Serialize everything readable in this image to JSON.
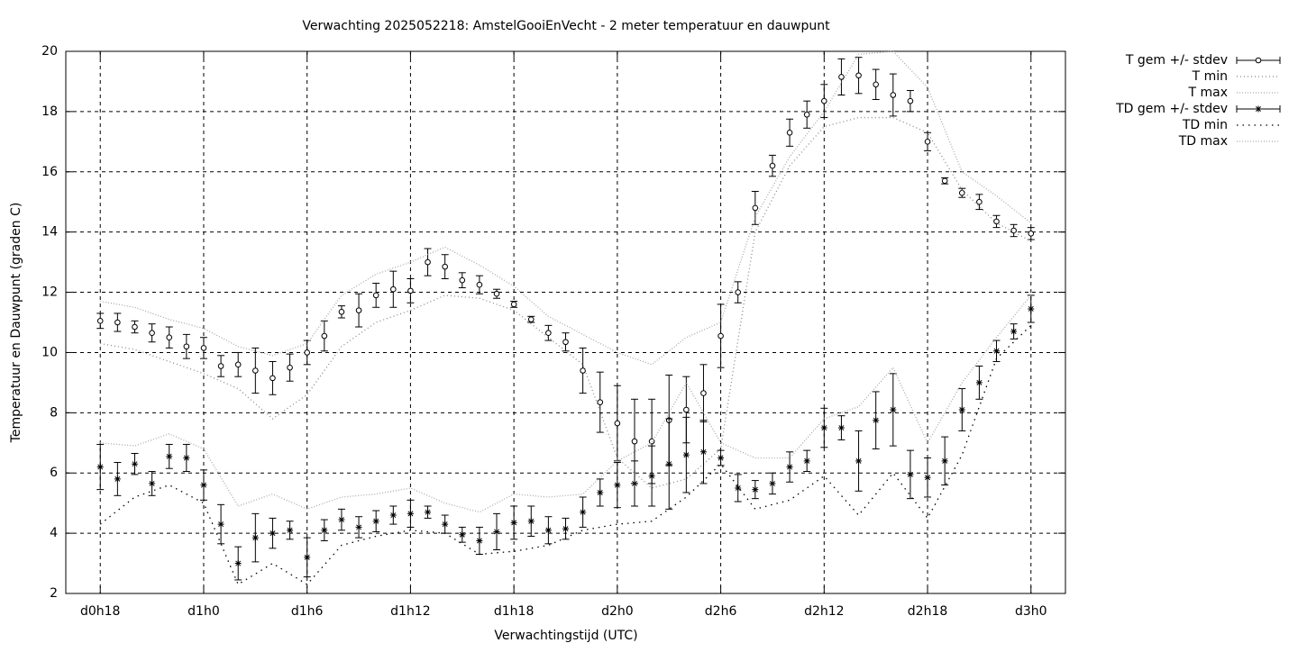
{
  "chart_data": {
    "type": "errorbar",
    "title": "Verwachting 2025052218: AmstelGooiEnVecht - 2 meter temperatuur en dauwpunt",
    "xlabel": "Verwachtingstijd (UTC)",
    "ylabel": "Temperatuur en Dauwpunt (graden C)",
    "xlim": [
      16,
      74
    ],
    "ylim": [
      2,
      20
    ],
    "xticks": [
      {
        "value": 18,
        "label": "d0h18"
      },
      {
        "value": 24,
        "label": "d1h0"
      },
      {
        "value": 30,
        "label": "d1h6"
      },
      {
        "value": 36,
        "label": "d1h12"
      },
      {
        "value": 42,
        "label": "d1h18"
      },
      {
        "value": 48,
        "label": "d2h0"
      },
      {
        "value": 54,
        "label": "d2h6"
      },
      {
        "value": 60,
        "label": "d2h12"
      },
      {
        "value": 66,
        "label": "d2h18"
      },
      {
        "value": 72,
        "label": "d3h0"
      }
    ],
    "yticks": [
      2,
      4,
      6,
      8,
      10,
      12,
      14,
      16,
      18,
      20
    ],
    "grid": true,
    "legend": "outside-top-right",
    "series": [
      {
        "name": "T gem +/- stdev",
        "kind": "errorbar",
        "marker": "circle",
        "color": "#000000",
        "x": [
          18,
          19,
          20,
          21,
          22,
          23,
          24,
          25,
          26,
          27,
          28,
          29,
          30,
          31,
          32,
          33,
          34,
          35,
          36,
          37,
          38,
          39,
          40,
          41,
          42,
          43,
          44,
          45,
          46,
          47,
          48,
          49,
          50,
          51,
          52,
          53,
          54,
          55,
          56,
          57,
          58,
          59,
          60,
          61,
          62,
          63,
          64,
          65,
          66,
          67,
          68,
          69,
          70,
          71,
          72
        ],
        "values": [
          11.05,
          11.0,
          10.85,
          10.65,
          10.5,
          10.2,
          10.15,
          9.55,
          9.6,
          9.4,
          9.15,
          9.5,
          10.0,
          10.55,
          11.35,
          11.4,
          11.9,
          12.1,
          12.05,
          13.0,
          12.85,
          12.4,
          12.25,
          11.95,
          11.6,
          11.1,
          10.65,
          10.35,
          9.4,
          8.35,
          7.65,
          7.05,
          7.05,
          7.75,
          8.1,
          8.65,
          10.55,
          12.0,
          14.8,
          16.2,
          17.3,
          17.9,
          18.35,
          19.15,
          19.2,
          18.9,
          18.55,
          18.35,
          17.0,
          15.7,
          15.3,
          15.0,
          14.35,
          14.05,
          13.95
        ],
        "errors": [
          0.25,
          0.3,
          0.2,
          0.3,
          0.35,
          0.4,
          0.35,
          0.35,
          0.4,
          0.75,
          0.55,
          0.45,
          0.4,
          0.5,
          0.2,
          0.55,
          0.4,
          0.6,
          0.4,
          0.45,
          0.4,
          0.25,
          0.3,
          0.15,
          0.1,
          0.1,
          0.25,
          0.3,
          0.75,
          1.0,
          1.25,
          1.4,
          1.4,
          1.5,
          1.1,
          0.95,
          1.05,
          0.35,
          0.55,
          0.35,
          0.45,
          0.45,
          0.55,
          0.6,
          0.6,
          0.5,
          0.7,
          0.35,
          0.3,
          0.1,
          0.15,
          0.25,
          0.2,
          0.2,
          0.2
        ]
      },
      {
        "name": "T min",
        "kind": "line",
        "dash": "1 3",
        "color": "#888888",
        "x": [
          18,
          20,
          22,
          24,
          26,
          28,
          30,
          32,
          34,
          36,
          38,
          40,
          42,
          44,
          46,
          48,
          50,
          52,
          54,
          56,
          58,
          60,
          62,
          64,
          66,
          68,
          70,
          72
        ],
        "values": [
          10.3,
          10.1,
          9.7,
          9.3,
          8.8,
          7.8,
          8.6,
          10.2,
          11.0,
          11.4,
          11.9,
          11.8,
          11.4,
          10.5,
          9.6,
          6.5,
          5.5,
          5.8,
          6.8,
          14.0,
          16.2,
          17.5,
          17.8,
          17.8,
          17.3,
          15.4,
          14.3,
          13.7
        ]
      },
      {
        "name": "T max",
        "kind": "line",
        "dash": "1 2",
        "color": "#aaaaaa",
        "x": [
          18,
          20,
          22,
          24,
          26,
          28,
          30,
          32,
          34,
          36,
          38,
          40,
          42,
          44,
          46,
          48,
          50,
          52,
          54,
          56,
          58,
          60,
          62,
          64,
          66,
          68,
          70,
          72
        ],
        "values": [
          11.7,
          11.5,
          11.1,
          10.8,
          10.2,
          9.9,
          10.3,
          11.9,
          12.6,
          13.0,
          13.5,
          12.9,
          12.2,
          11.2,
          10.6,
          10.0,
          9.6,
          10.5,
          11.0,
          14.5,
          16.5,
          18.0,
          19.9,
          20.0,
          18.8,
          16.0,
          15.2,
          14.3
        ]
      },
      {
        "name": "TD gem +/- stdev",
        "kind": "errorbar",
        "marker": "star",
        "color": "#000000",
        "x": [
          18,
          19,
          20,
          21,
          22,
          23,
          24,
          25,
          26,
          27,
          28,
          29,
          30,
          31,
          32,
          33,
          34,
          35,
          36,
          37,
          38,
          39,
          40,
          41,
          42,
          43,
          44,
          45,
          46,
          47,
          48,
          49,
          50,
          51,
          52,
          53,
          54,
          55,
          56,
          57,
          58,
          59,
          60,
          61,
          62,
          63,
          64,
          65,
          66,
          67,
          68,
          69,
          70,
          71,
          72
        ],
        "values": [
          6.2,
          5.8,
          6.3,
          5.65,
          6.55,
          6.5,
          5.6,
          4.3,
          3.0,
          3.85,
          4.0,
          4.1,
          3.2,
          4.1,
          4.45,
          4.2,
          4.4,
          4.6,
          4.65,
          4.7,
          4.3,
          3.95,
          3.75,
          4.05,
          4.35,
          4.4,
          4.1,
          4.15,
          4.7,
          5.35,
          5.6,
          5.65,
          5.9,
          6.3,
          6.6,
          6.7,
          6.5,
          5.5,
          5.45,
          5.65,
          6.2,
          6.4,
          7.5,
          7.5,
          6.4,
          7.75,
          8.1,
          5.95,
          5.85,
          6.4,
          8.1,
          9.0,
          10.05,
          10.7,
          11.45
        ],
        "errors": [
          0.75,
          0.55,
          0.35,
          0.4,
          0.4,
          0.45,
          0.5,
          0.65,
          0.55,
          0.8,
          0.5,
          0.3,
          0.65,
          0.35,
          0.35,
          0.35,
          0.35,
          0.3,
          0.45,
          0.2,
          0.3,
          0.25,
          0.45,
          0.6,
          0.55,
          0.5,
          0.45,
          0.35,
          0.5,
          0.45,
          0.75,
          0.75,
          1.0,
          1.5,
          1.25,
          1.05,
          0.25,
          0.45,
          0.3,
          0.35,
          0.5,
          0.35,
          0.65,
          0.4,
          1.0,
          0.95,
          1.2,
          0.8,
          0.65,
          0.8,
          0.7,
          0.55,
          0.35,
          0.25,
          0.45
        ]
      },
      {
        "name": "TD min",
        "kind": "line",
        "dash": "1.5 5",
        "color": "#000000",
        "x": [
          18,
          20,
          22,
          24,
          26,
          28,
          30,
          32,
          34,
          36,
          38,
          40,
          42,
          44,
          46,
          48,
          50,
          52,
          54,
          56,
          58,
          60,
          62,
          64,
          66,
          68,
          70,
          72
        ],
        "values": [
          4.3,
          5.2,
          5.6,
          5.0,
          2.3,
          3.0,
          2.3,
          3.6,
          3.9,
          4.1,
          4.0,
          3.3,
          3.4,
          3.6,
          4.1,
          4.3,
          4.4,
          5.2,
          6.3,
          4.8,
          5.1,
          5.9,
          4.6,
          6.0,
          4.5,
          6.6,
          9.8,
          10.9
        ]
      },
      {
        "name": "TD max",
        "kind": "line",
        "dash": "1 2",
        "color": "#aaaaaa",
        "x": [
          18,
          20,
          22,
          24,
          26,
          28,
          30,
          32,
          34,
          36,
          38,
          40,
          42,
          44,
          46,
          48,
          50,
          52,
          54,
          56,
          58,
          60,
          62,
          64,
          66,
          68,
          70,
          72
        ],
        "values": [
          7.0,
          6.9,
          7.3,
          6.8,
          4.9,
          5.3,
          4.8,
          5.2,
          5.3,
          5.5,
          5.0,
          4.7,
          5.3,
          5.2,
          5.3,
          6.4,
          7.0,
          9.0,
          7.0,
          6.5,
          6.5,
          7.8,
          8.2,
          9.5,
          7.0,
          9.0,
          10.5,
          11.9
        ]
      }
    ]
  }
}
